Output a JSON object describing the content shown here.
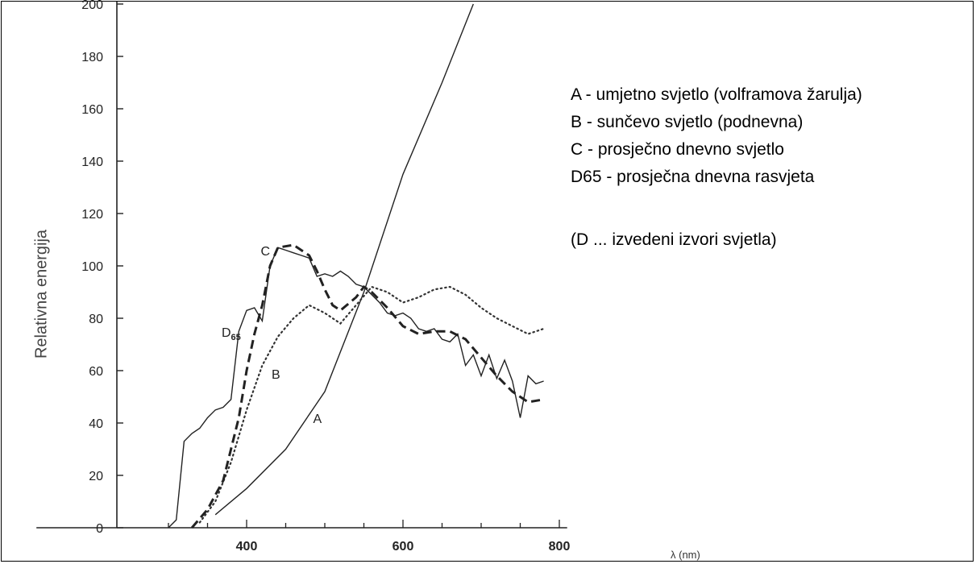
{
  "chart_data": {
    "type": "line",
    "title": "",
    "xlabel": "λ (nm)",
    "ylabel": "Relativna energija",
    "xlim": [
      260,
      810
    ],
    "ylim": [
      0,
      200
    ],
    "x_ticks": [
      "400",
      "600",
      "800"
    ],
    "y_ticks": [
      "0",
      "20",
      "40",
      "60",
      "80",
      "100",
      "120",
      "140",
      "160",
      "180",
      "200"
    ],
    "grid": false,
    "series": [
      {
        "name": "A",
        "style": "solid",
        "x": [
          360,
          400,
          450,
          500,
          550,
          600,
          650,
          690
        ],
        "y": [
          5,
          15,
          30,
          52,
          90,
          135,
          170,
          200
        ]
      },
      {
        "name": "B",
        "style": "dotted",
        "x": [
          340,
          360,
          380,
          400,
          420,
          440,
          460,
          480,
          500,
          520,
          540,
          560,
          580,
          600,
          620,
          640,
          660,
          680,
          700,
          720,
          740,
          760,
          780
        ],
        "y": [
          2,
          10,
          25,
          45,
          62,
          73,
          80,
          85,
          82,
          78,
          85,
          92,
          90,
          86,
          88,
          91,
          92,
          89,
          84,
          80,
          77,
          74,
          76
        ]
      },
      {
        "name": "C",
        "style": "dashed",
        "x": [
          330,
          350,
          370,
          390,
          400,
          410,
          420,
          430,
          440,
          460,
          480,
          490,
          500,
          510,
          520,
          540,
          550,
          560,
          580,
          600,
          620,
          640,
          660,
          680,
          700,
          720,
          740,
          760,
          780
        ],
        "y": [
          0,
          7,
          18,
          42,
          60,
          74,
          85,
          100,
          107,
          108,
          104,
          98,
          91,
          85,
          83,
          88,
          92,
          90,
          84,
          77,
          74,
          75,
          75,
          72,
          65,
          58,
          52,
          48,
          49
        ]
      },
      {
        "name": "D65",
        "style": "solid",
        "x": [
          300,
          310,
          320,
          330,
          340,
          350,
          360,
          370,
          380,
          390,
          400,
          410,
          420,
          430,
          440,
          450,
          460,
          470,
          480,
          490,
          500,
          510,
          520,
          530,
          540,
          550,
          560,
          570,
          580,
          590,
          600,
          610,
          620,
          630,
          640,
          650,
          660,
          670,
          680,
          690,
          700,
          710,
          720,
          730,
          740,
          750,
          760,
          770,
          780
        ],
        "y": [
          0,
          3,
          33,
          36,
          38,
          42,
          45,
          46,
          49,
          75,
          83,
          84,
          79,
          100,
          107,
          106,
          105,
          104,
          103,
          96,
          97,
          96,
          98,
          96,
          93,
          92,
          89,
          86,
          82,
          81,
          82,
          80,
          76,
          75,
          76,
          72,
          71,
          74,
          62,
          66,
          58,
          66,
          57,
          64,
          56,
          42,
          58,
          55,
          56
        ]
      }
    ],
    "annotations": [
      {
        "text": "A",
        "x": 485,
        "y": 40
      },
      {
        "text": "B",
        "x": 432,
        "y": 57
      },
      {
        "text": "C",
        "x": 418,
        "y": 104
      },
      {
        "text": "D",
        "sub": "65",
        "x": 368,
        "y": 73
      }
    ],
    "legend_lines": [
      "A - umjetno svjetlo (volframova žarulja)",
      "B - sunčevo svjetlo (podnevna)",
      "C - prosječno dnevno svjetlo",
      "D65 - prosječna dnevna rasvjeta",
      "(D ... izvedeni izvori svjetla)"
    ]
  }
}
